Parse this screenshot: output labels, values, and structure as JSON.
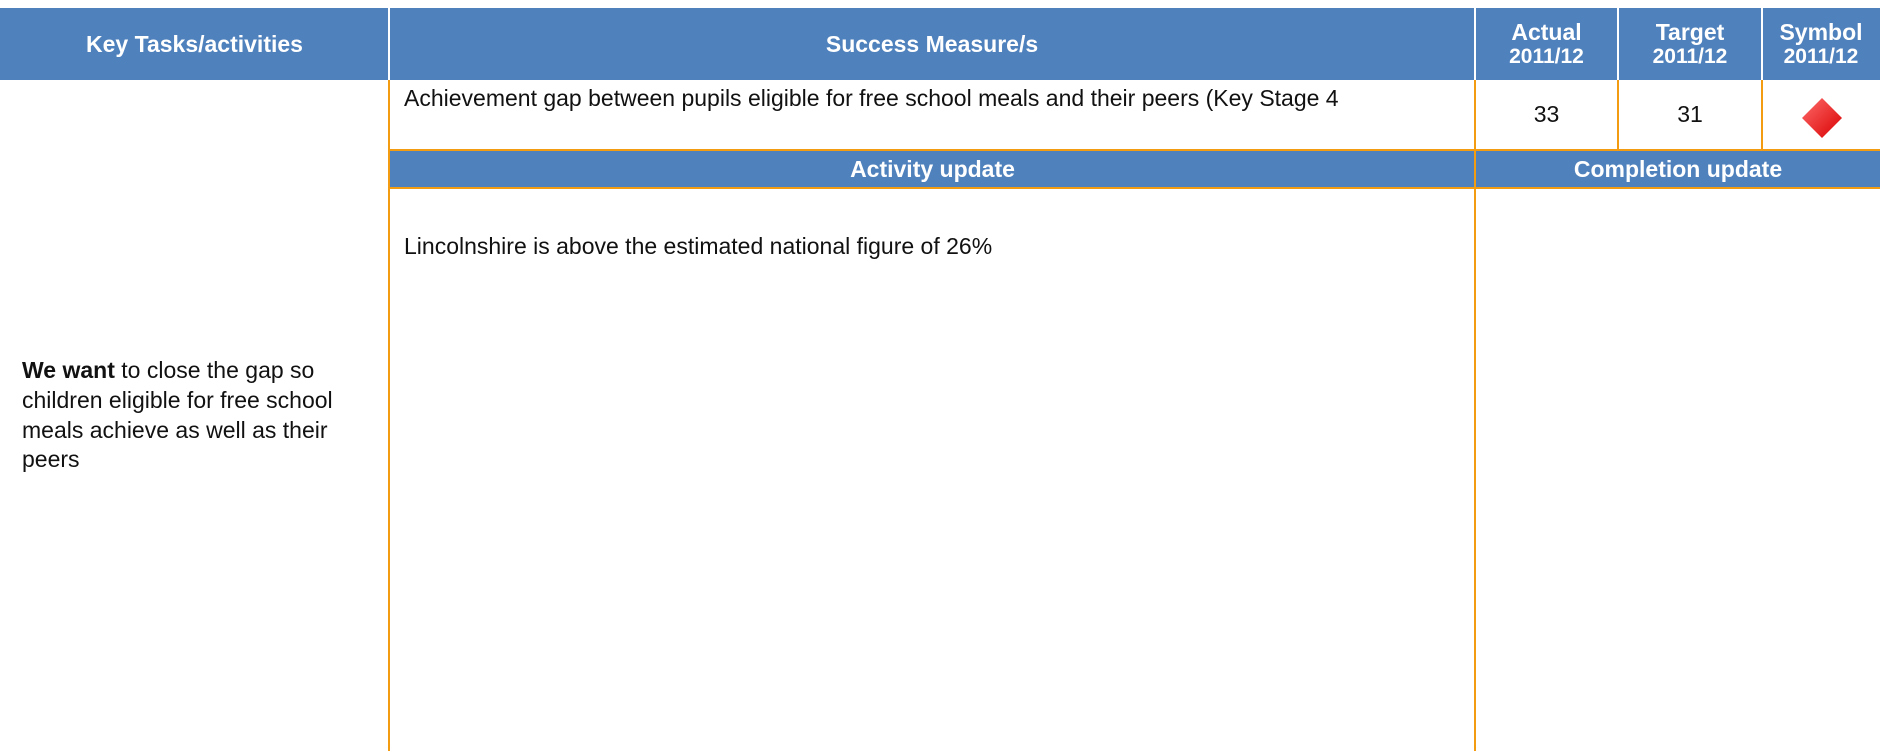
{
  "table": {
    "header": {
      "key_tasks": "Key Tasks/activities",
      "success_measures": "Success Measure/s",
      "actual": "Actual",
      "actual_period": "2011/12",
      "target": "Target",
      "target_period": "2011/12",
      "symbol": "Symbol",
      "symbol_period": "2011/12"
    },
    "row": {
      "measure": "Achievement gap between pupils eligible for free school meals and their peers (Key Stage 4",
      "actual": "33",
      "target": "31"
    },
    "key_task": {
      "bold": "We want",
      "text": " to close the gap so children eligible for free school meals achieve as well as their peers"
    },
    "subheader": {
      "activity": "Activity update",
      "completion": "Completion update"
    },
    "activity_text": "Lincolnshire is above the estimated national figure of 26%"
  }
}
